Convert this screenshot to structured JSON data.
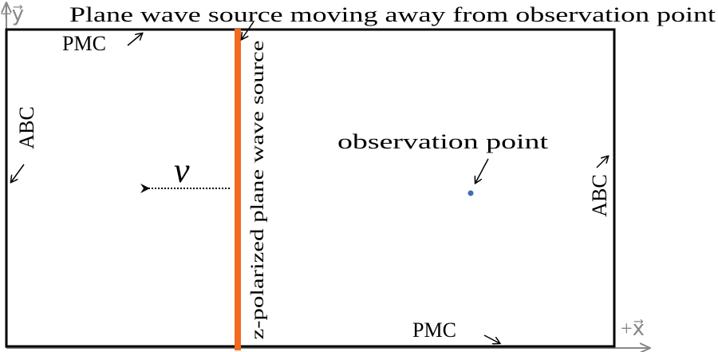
{
  "title": "Plane wave source moving away from observation point",
  "axes": {
    "y": "+y⃗",
    "x": "+x⃗"
  },
  "boundaries": {
    "top": "PMC",
    "bottom": "PMC",
    "left": "ABC",
    "right": "ABC"
  },
  "source": {
    "label": "z-polarized plane wave source",
    "velocity": "v"
  },
  "observation": {
    "label": "observation point"
  }
}
